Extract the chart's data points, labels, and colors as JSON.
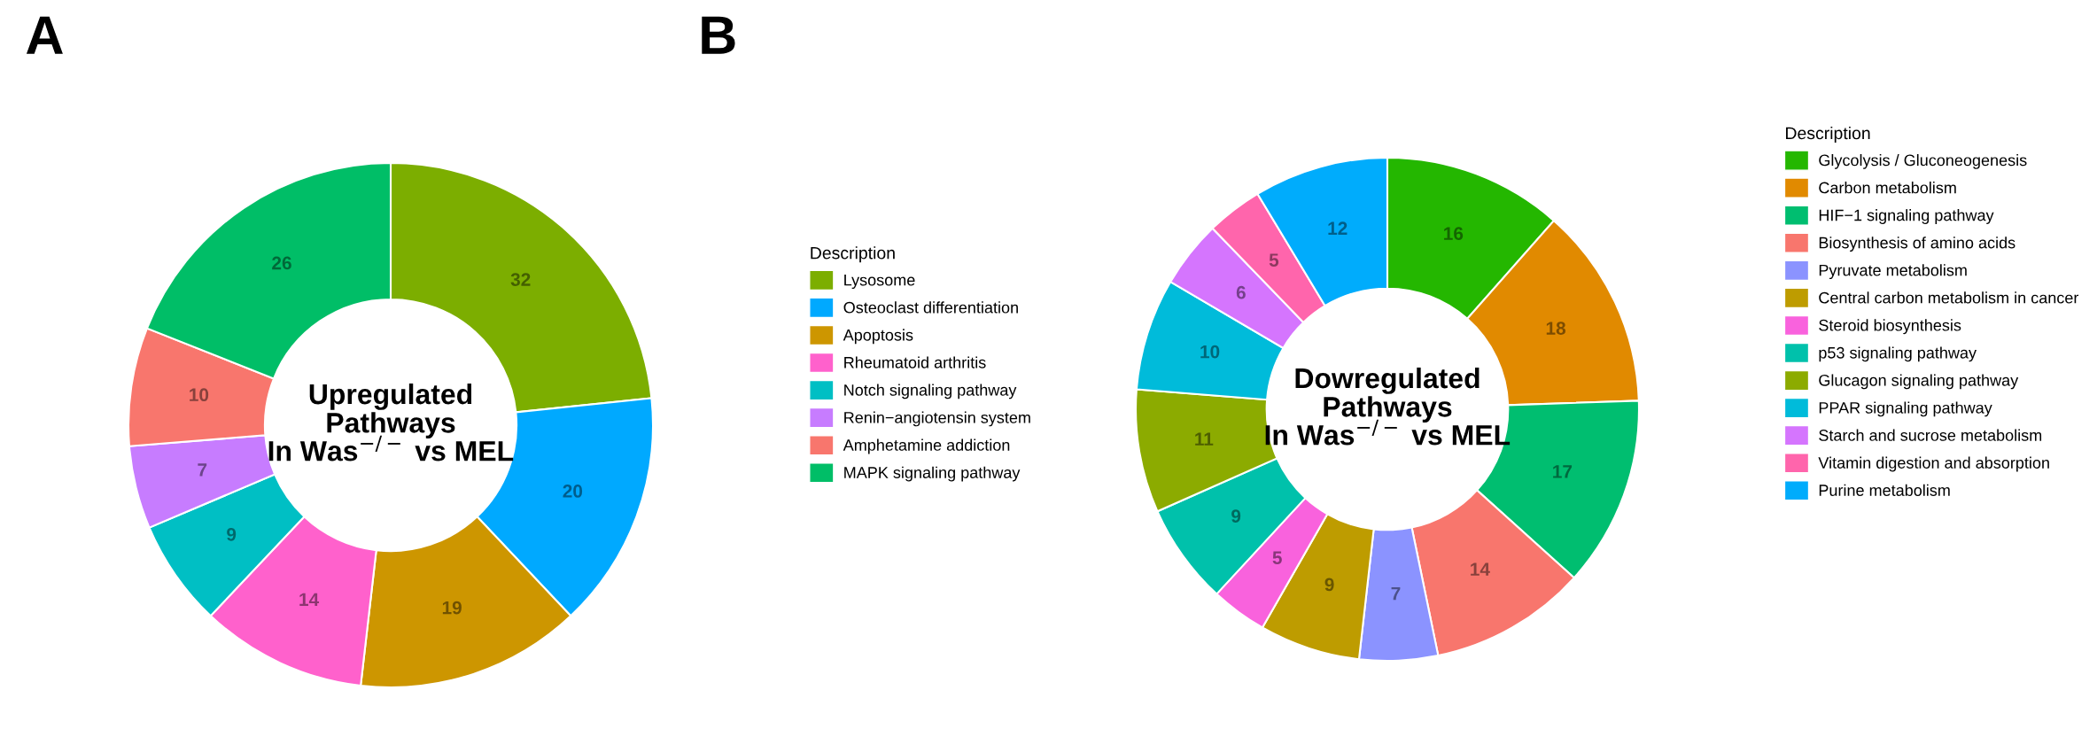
{
  "chart_data": [
    {
      "type": "donut",
      "title": "A",
      "legend_title": "Description",
      "legend": "right",
      "data_labels": true,
      "annotations": [
        "Upregulated\nPathways\nIn Was$^{−/−}$ vs MEL"
      ],
      "categories": [
        "Lysosome",
        "Osteoclast differentiation",
        "Apoptosis",
        "Rheumatoid arthritis",
        "Notch signaling pathway",
        "Renin−angiotensin system",
        "Amphetamine addiction",
        "MAPK signaling pathway"
      ],
      "values": [
        32,
        20,
        19,
        14,
        9,
        7,
        10,
        26
      ],
      "colors": [
        "#7CAE00",
        "#00A9FF",
        "#CD9600",
        "#FF61CC",
        "#00BFC4",
        "#C77CFF",
        "#F8766D",
        "#00BE67"
      ]
    },
    {
      "type": "donut",
      "title": "B",
      "legend_title": "Description",
      "legend": "right",
      "data_labels": true,
      "annotations": [
        "Dowregulated\nPathways\nIn Was$^{−/−}$ vs MEL"
      ],
      "categories": [
        "Glycolysis / Gluconeogenesis",
        "Carbon metabolism",
        "HIF−1 signaling pathway",
        "Biosynthesis of amino acids",
        "Pyruvate metabolism",
        "Central carbon metabolism in cancer",
        "Steroid biosynthesis",
        "p53 signaling pathway",
        "Glucagon signaling pathway",
        "PPAR signaling pathway",
        "Starch and sucrose metabolism",
        "Vitamin digestion and absorption",
        "Purine metabolism"
      ],
      "values": [
        16,
        18,
        17,
        14,
        7,
        9,
        5,
        9,
        11,
        10,
        6,
        5,
        12
      ],
      "colors": [
        "#24B700",
        "#E18A00",
        "#00BE70",
        "#F8766D",
        "#8B93FF",
        "#BE9C00",
        "#F962DD",
        "#00C1AB",
        "#8CAB00",
        "#00BBDA",
        "#D575FE",
        "#FF65AC",
        "#00ACFC"
      ]
    }
  ]
}
